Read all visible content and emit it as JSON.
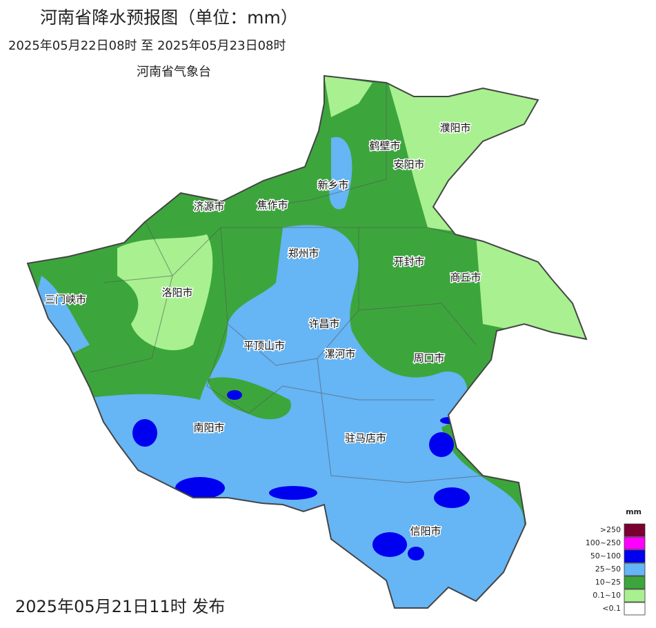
{
  "header": {
    "title": "河南省降水预报图（单位：mm）",
    "period": "2025年05月22日08时  至  2025年05月23日08时",
    "agency": "河南省气象台"
  },
  "cities": [
    "濮阳市",
    "鹤壁市",
    "安阳市",
    "新乡市",
    "济源市",
    "焦作市",
    "郑州市",
    "开封市",
    "商丘市",
    "三门峡市",
    "洛阳市",
    "许昌市",
    "平顶山市",
    "漯河市",
    "周口市",
    "南阳市",
    "驻马店市",
    "信阳市"
  ],
  "legend": {
    "title": "mm",
    "items": [
      {
        "label": ">250",
        "color": "#7a0032"
      },
      {
        "label": "100~250",
        "color": "#ff00ff"
      },
      {
        "label": "50~100",
        "color": "#0000f0"
      },
      {
        "label": "25~50",
        "color": "#66b5f5"
      },
      {
        "label": "10~25",
        "color": "#3ca63c"
      },
      {
        "label": "0.1~10",
        "color": "#a8f090"
      },
      {
        "label": "<0.1",
        "color": "#ffffff"
      }
    ]
  },
  "footer": {
    "issued": "2025年05月21日11时 发布"
  }
}
